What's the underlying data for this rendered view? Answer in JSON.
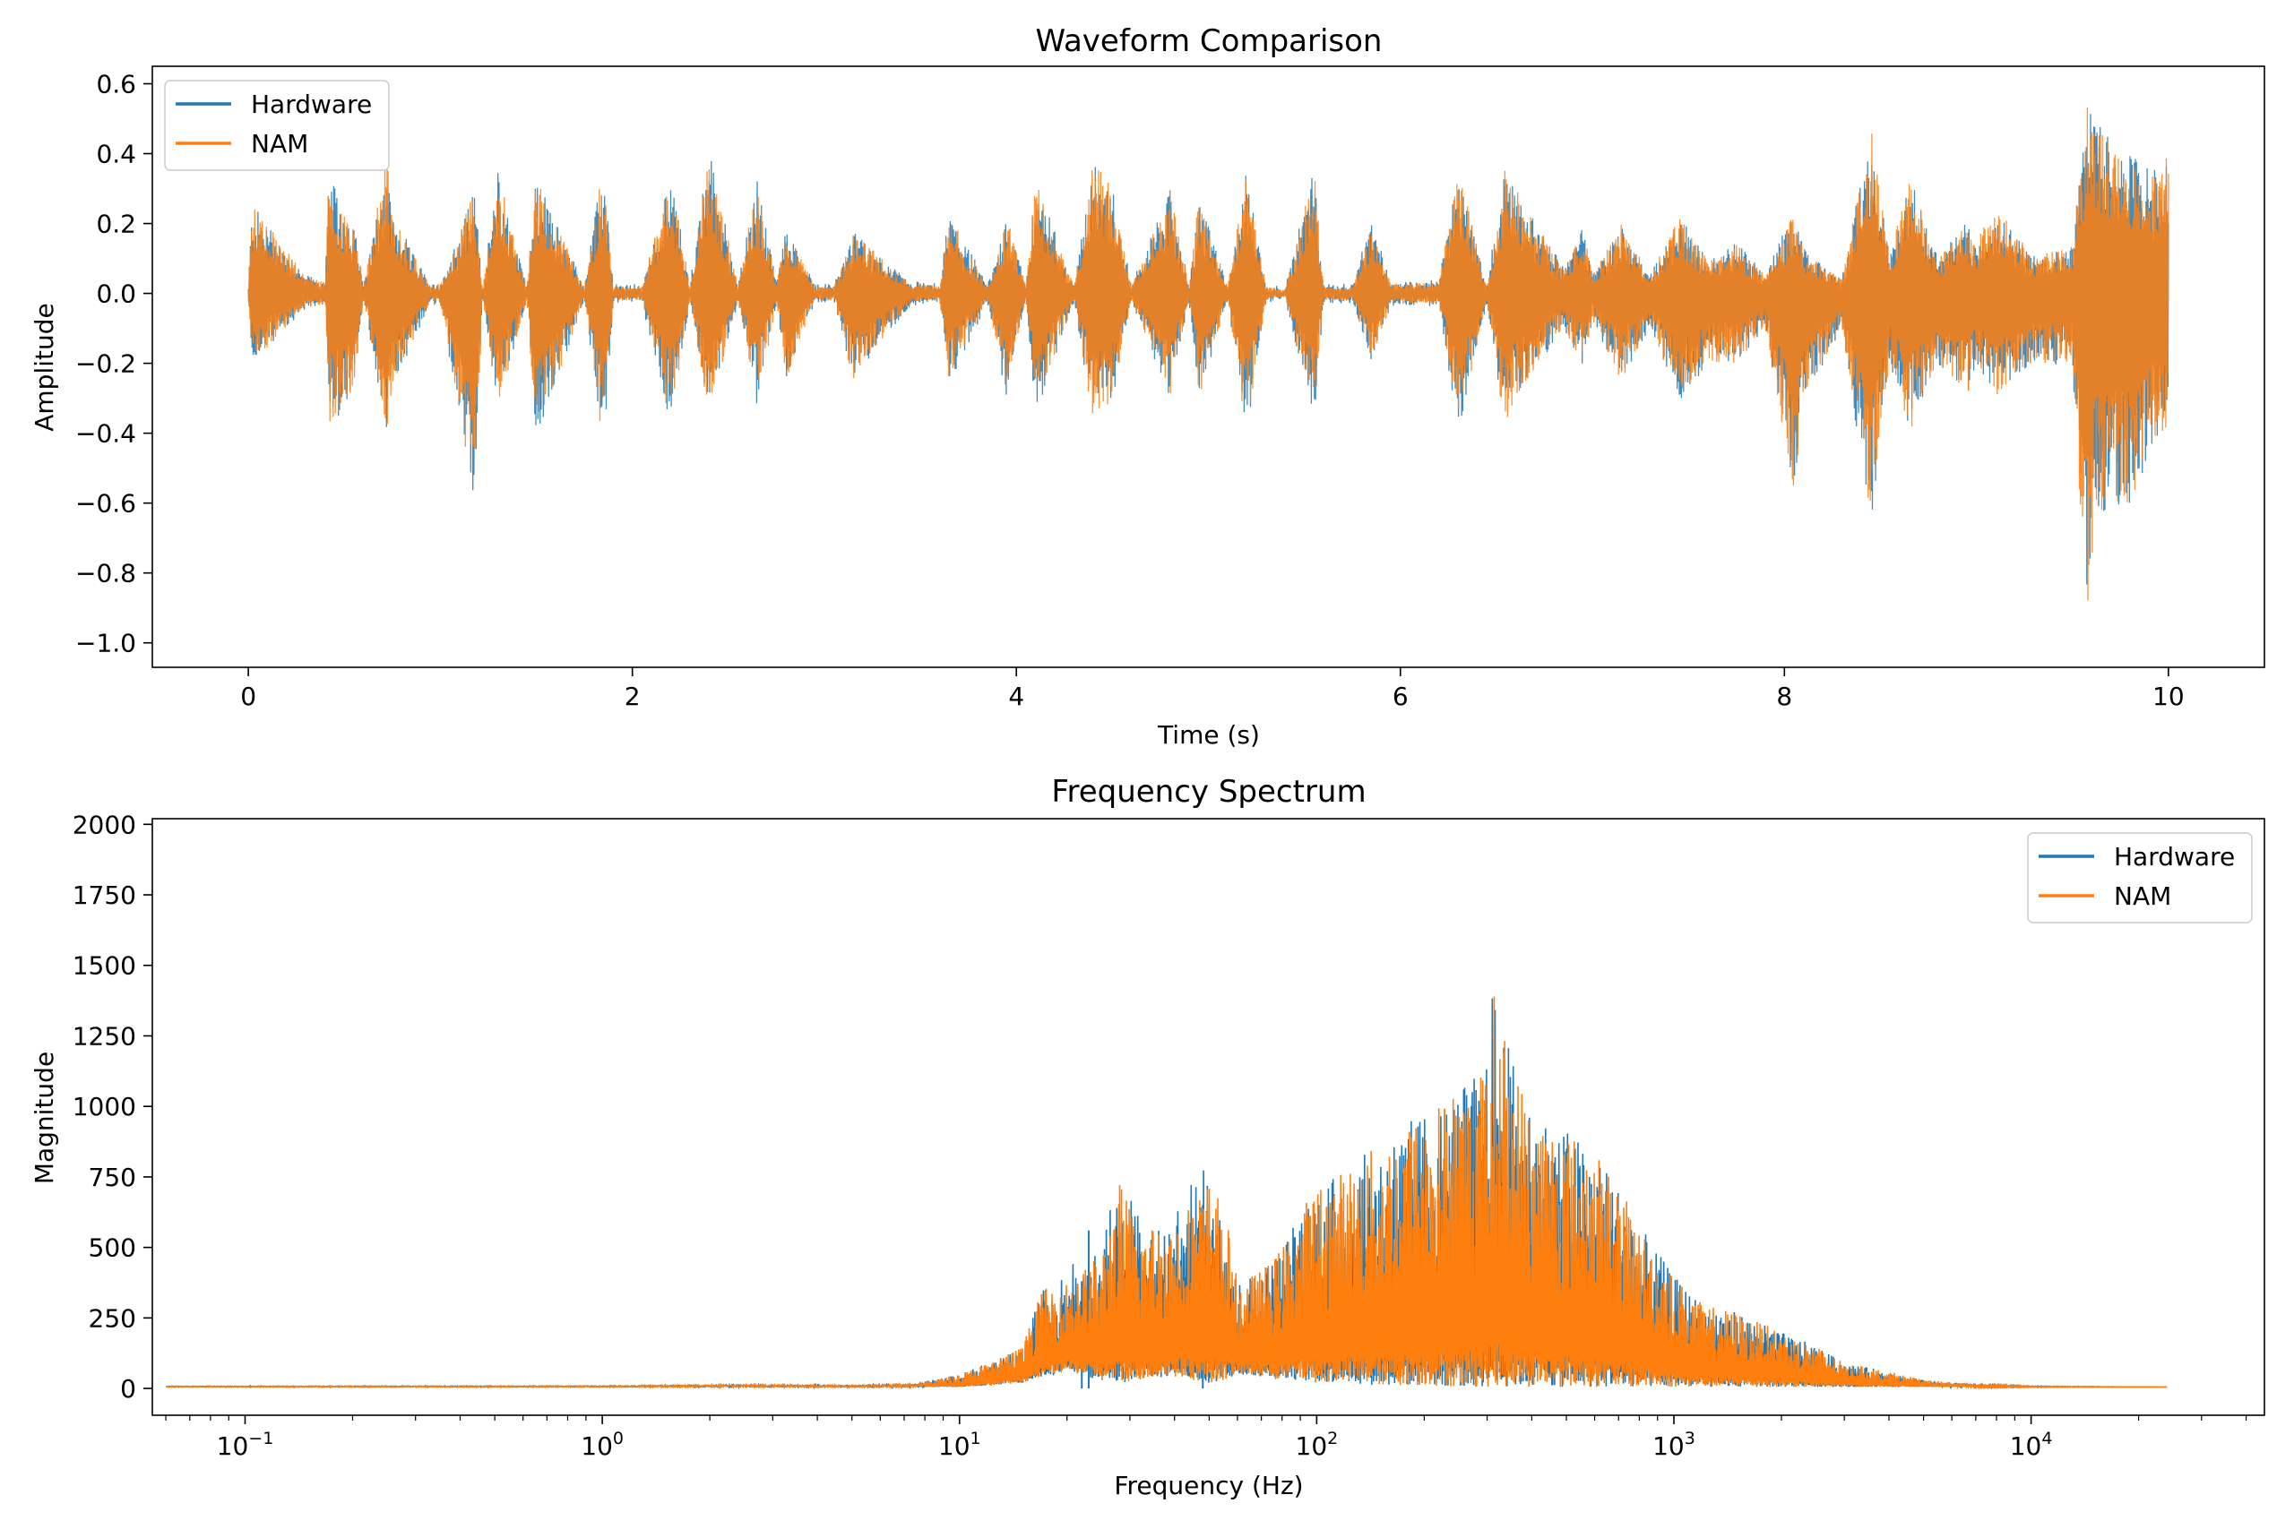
{
  "colors": {
    "hardware": "#1f77b4",
    "nam": "#ff7f0e",
    "axis": "#000000",
    "legend_border": "#cccccc"
  },
  "chart_data": [
    {
      "type": "line",
      "title": "Waveform Comparison",
      "xlabel": "Time (s)",
      "ylabel": "Amplitude",
      "xlim": [
        -0.5,
        10.5
      ],
      "ylim": [
        -1.07,
        0.65
      ],
      "xticks": [
        0,
        2,
        4,
        6,
        8,
        10
      ],
      "xtick_labels": [
        "0",
        "2",
        "4",
        "6",
        "8",
        "10"
      ],
      "yticks": [
        0.6,
        0.4,
        0.2,
        0.0,
        -0.2,
        -0.4,
        -0.6,
        -0.8,
        -1.0
      ],
      "ytick_labels": [
        "0.6",
        "0.4",
        "0.2",
        "0.0",
        "−0.2",
        "−0.4",
        "−0.6",
        "−0.8",
        "−1.0"
      ],
      "grid": false,
      "legend": "top-left",
      "series": [
        {
          "name": "Hardware",
          "color": "#1f77b4",
          "opacity": 0.85
        },
        {
          "name": "NAM",
          "color": "#ff7f0e",
          "opacity": 0.85
        }
      ],
      "envelope": {
        "t": [
          0.0,
          0.02,
          0.3,
          0.4,
          0.42,
          0.55,
          0.6,
          0.72,
          0.75,
          0.95,
          1.0,
          1.18,
          1.22,
          1.3,
          1.45,
          1.5,
          1.75,
          1.85,
          1.9,
          2.05,
          2.2,
          2.3,
          2.4,
          2.55,
          2.65,
          2.75,
          2.8,
          2.95,
          3.05,
          3.15,
          3.2,
          3.45,
          3.6,
          3.65,
          3.85,
          3.95,
          4.05,
          4.1,
          4.3,
          4.4,
          4.5,
          4.6,
          4.8,
          4.9,
          4.95,
          5.1,
          5.2,
          5.3,
          5.4,
          5.55,
          5.6,
          5.75,
          5.85,
          5.95,
          6.2,
          6.3,
          6.45,
          6.55,
          6.6,
          6.85,
          6.95,
          7.0,
          7.15,
          7.3,
          7.45,
          7.6,
          7.75,
          7.9,
          8.05,
          8.1,
          8.3,
          8.45,
          8.55,
          8.65,
          8.8,
          8.95,
          9.0,
          9.1,
          9.3,
          9.5,
          9.58,
          9.62,
          9.8,
          9.95,
          10.0
        ],
        "upper": [
          0.02,
          0.26,
          0.05,
          0.03,
          0.33,
          0.2,
          0.02,
          0.4,
          0.22,
          0.02,
          0.03,
          0.3,
          0.01,
          0.35,
          0.02,
          0.33,
          0.02,
          0.38,
          0.02,
          0.02,
          0.35,
          0.02,
          0.42,
          0.02,
          0.33,
          0.03,
          0.2,
          0.02,
          0.02,
          0.17,
          0.15,
          0.03,
          0.02,
          0.23,
          0.02,
          0.22,
          0.02,
          0.33,
          0.02,
          0.38,
          0.3,
          0.02,
          0.3,
          0.02,
          0.28,
          0.02,
          0.35,
          0.02,
          0.01,
          0.38,
          0.02,
          0.02,
          0.2,
          0.03,
          0.03,
          0.37,
          0.02,
          0.38,
          0.3,
          0.07,
          0.2,
          0.05,
          0.2,
          0.05,
          0.22,
          0.1,
          0.15,
          0.05,
          0.24,
          0.12,
          0.04,
          0.48,
          0.1,
          0.35,
          0.1,
          0.2,
          0.15,
          0.25,
          0.1,
          0.15,
          0.58,
          0.5,
          0.4,
          0.35,
          0.4
        ],
        "lower": [
          -0.02,
          -0.2,
          -0.04,
          -0.03,
          -0.38,
          -0.3,
          -0.02,
          -0.4,
          -0.27,
          -0.02,
          -0.03,
          -0.62,
          -0.01,
          -0.33,
          -0.02,
          -0.42,
          -0.02,
          -0.45,
          -0.02,
          -0.02,
          -0.38,
          -0.02,
          -0.35,
          -0.02,
          -0.32,
          -0.03,
          -0.25,
          -0.02,
          -0.02,
          -0.25,
          -0.2,
          -0.03,
          -0.02,
          -0.25,
          -0.02,
          -0.3,
          -0.02,
          -0.35,
          -0.02,
          -0.37,
          -0.3,
          -0.02,
          -0.3,
          -0.02,
          -0.3,
          -0.02,
          -0.42,
          -0.02,
          -0.01,
          -0.37,
          -0.02,
          -0.02,
          -0.2,
          -0.03,
          -0.03,
          -0.4,
          -0.02,
          -0.42,
          -0.3,
          -0.1,
          -0.2,
          -0.08,
          -0.25,
          -0.1,
          -0.3,
          -0.2,
          -0.2,
          -0.1,
          -0.57,
          -0.3,
          -0.1,
          -0.67,
          -0.2,
          -0.4,
          -0.2,
          -0.3,
          -0.2,
          -0.3,
          -0.2,
          -0.2,
          -1.0,
          -0.65,
          -0.6,
          -0.4,
          -0.4
        ]
      }
    },
    {
      "type": "line",
      "title": "Frequency Spectrum",
      "xlabel": "Frequency (Hz)",
      "ylabel": "Magnitude",
      "xscale": "log",
      "xlim": [
        0.055,
        45000
      ],
      "ylim": [
        -95,
        2020
      ],
      "xticks": [
        0.1,
        1,
        10,
        100,
        1000,
        10000
      ],
      "xtick_labels": [
        {
          "base": "10",
          "exp": "−1"
        },
        {
          "base": "10",
          "exp": "0"
        },
        {
          "base": "10",
          "exp": "1"
        },
        {
          "base": "10",
          "exp": "2"
        },
        {
          "base": "10",
          "exp": "3"
        },
        {
          "base": "10",
          "exp": "4"
        }
      ],
      "yticks": [
        0,
        250,
        500,
        750,
        1000,
        1250,
        1500,
        1750,
        2000
      ],
      "ytick_labels": [
        "0",
        "250",
        "500",
        "750",
        "1000",
        "1250",
        "1500",
        "1750",
        "2000"
      ],
      "grid": false,
      "legend": "top-right",
      "series": [
        {
          "name": "Hardware",
          "color": "#1f77b4"
        },
        {
          "name": "NAM",
          "color": "#ff7f0e"
        }
      ],
      "envelope": {
        "f": [
          0.055,
          1,
          2.4,
          5,
          8,
          10,
          12,
          15,
          17,
          20,
          25,
          28,
          32,
          40,
          50,
          55,
          60,
          70,
          80,
          90,
          100,
          120,
          150,
          180,
          200,
          250,
          300,
          310,
          350,
          400,
          500,
          600,
          700,
          800,
          1000,
          1200,
          1500,
          2000,
          2500,
          3000,
          4000,
          5000,
          7000,
          10000,
          24000
        ],
        "upper": [
          10,
          12,
          18,
          15,
          25,
          50,
          90,
          150,
          350,
          380,
          480,
          740,
          580,
          600,
          740,
          660,
          380,
          420,
          500,
          640,
          720,
          780,
          870,
          950,
          980,
          1070,
          1150,
          1440,
          1180,
          1000,
          920,
          850,
          720,
          580,
          400,
          300,
          270,
          200,
          150,
          90,
          60,
          30,
          15,
          8,
          5
        ],
        "lower": [
          5,
          5,
          5,
          5,
          5,
          5,
          10,
          20,
          40,
          60,
          30,
          20,
          30,
          40,
          20,
          30,
          50,
          40,
          30,
          30,
          20,
          20,
          10,
          10,
          10,
          5,
          5,
          5,
          5,
          5,
          5,
          5,
          5,
          5,
          5,
          5,
          5,
          5,
          5,
          5,
          5,
          5,
          5,
          5,
          5
        ],
        "hardware_peaks": [
          {
            "f": 23,
            "v": 560
          },
          {
            "f": 48,
            "v": 650
          },
          {
            "f": 22,
            "v": 380
          }
        ]
      }
    }
  ]
}
